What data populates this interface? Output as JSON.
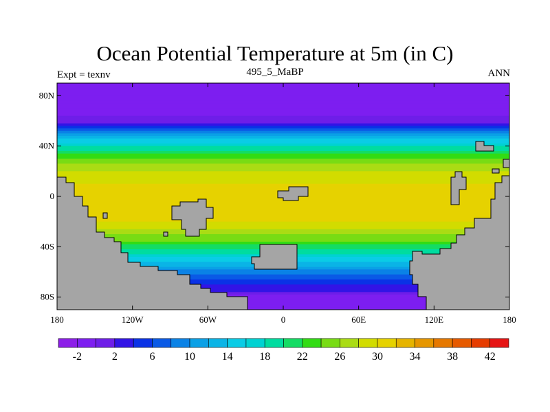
{
  "chart_data": {
    "type": "heatmap",
    "title": "Ocean Potential Temperature at 5m (in C)",
    "left_string": "Expt = texnv",
    "center_string": "495_5_MaBP",
    "right_string": "ANN",
    "x_ticks": [
      "180",
      "120W",
      "60W",
      "0",
      "60E",
      "120E",
      "180"
    ],
    "x_tick_values": [
      -180,
      -120,
      -60,
      0,
      60,
      120,
      180
    ],
    "y_ticks": [
      "80N",
      "40N",
      "0",
      "40S",
      "80S"
    ],
    "y_tick_values": [
      80,
      40,
      0,
      -40,
      -80
    ],
    "xlim": [
      -180,
      180
    ],
    "ylim": [
      -90,
      90
    ],
    "colorbar": {
      "levels": [
        -4,
        -2,
        0,
        2,
        4,
        6,
        8,
        10,
        12,
        14,
        16,
        18,
        20,
        22,
        24,
        26,
        28,
        30,
        32,
        34,
        36,
        38,
        40,
        42,
        44
      ],
      "labels": [
        "-2",
        "2",
        "6",
        "10",
        "14",
        "18",
        "22",
        "26",
        "30",
        "34",
        "38",
        "42"
      ],
      "label_values": [
        -2,
        2,
        6,
        10,
        14,
        18,
        22,
        26,
        30,
        34,
        38,
        42
      ],
      "colors": [
        "#8c1ee8",
        "#7d1ef0",
        "#6e1ee8",
        "#3214e6",
        "#0a32e6",
        "#0a5ae6",
        "#0a82e6",
        "#0aa0e6",
        "#0ab4e6",
        "#0acce6",
        "#00d2d2",
        "#00dca0",
        "#14dc64",
        "#32dc14",
        "#78dc14",
        "#aadc14",
        "#d2dc00",
        "#e6d200",
        "#e6b400",
        "#e69600",
        "#e67800",
        "#e65a00",
        "#e63c00",
        "#e61414"
      ]
    },
    "zonal_mean_profile": [
      {
        "lat": 90,
        "value": -2
      },
      {
        "lat": 70,
        "value": -2
      },
      {
        "lat": 58,
        "value": 2
      },
      {
        "lat": 50,
        "value": 10
      },
      {
        "lat": 40,
        "value": 18
      },
      {
        "lat": 30,
        "value": 24
      },
      {
        "lat": 20,
        "value": 28
      },
      {
        "lat": 0,
        "value": 32
      },
      {
        "lat": -20,
        "value": 30
      },
      {
        "lat": -35,
        "value": 24
      },
      {
        "lat": -45,
        "value": 18
      },
      {
        "lat": -55,
        "value": 12
      },
      {
        "lat": -65,
        "value": 6
      },
      {
        "lat": -75,
        "value": 2
      },
      {
        "lat": -80,
        "value": -2
      }
    ],
    "land_color": "#a5a5a5"
  }
}
